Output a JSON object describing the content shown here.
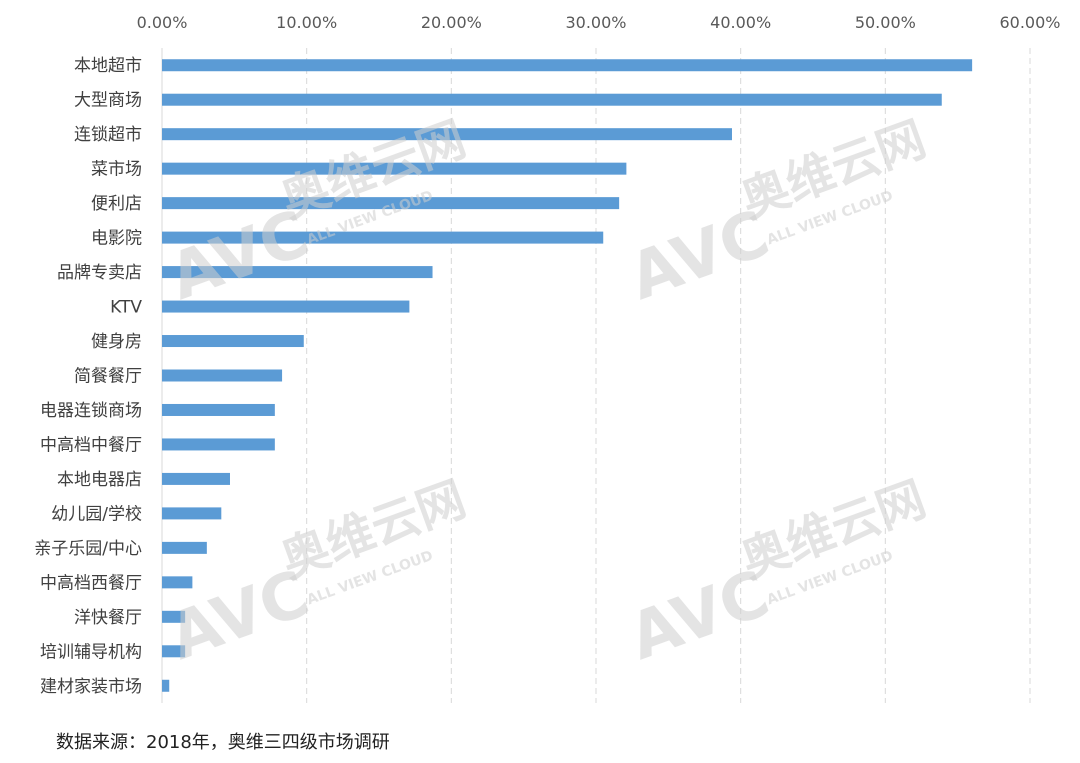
{
  "chart_data": {
    "type": "bar",
    "orientation": "horizontal",
    "categories": [
      "本地超市",
      "大型商场",
      "连锁超市",
      "菜市场",
      "便利店",
      "电影院",
      "品牌专卖店",
      "KTV",
      "健身房",
      "简餐餐厅",
      "电器连锁商场",
      "中高档中餐厅",
      "本地电器店",
      "幼儿园/学校",
      "亲子乐园/中心",
      "中高档西餐厅",
      "洋快餐厅",
      "培训辅导机构",
      "建材家装市场"
    ],
    "values": [
      56.0,
      53.9,
      39.4,
      32.1,
      31.6,
      30.5,
      18.7,
      17.1,
      9.8,
      8.3,
      7.8,
      7.8,
      4.7,
      4.1,
      3.1,
      2.1,
      1.6,
      1.6,
      0.5
    ],
    "value_axis_ticks": [
      "0.00%",
      "10.00%",
      "20.00%",
      "30.00%",
      "40.00%",
      "50.00%",
      "60.00%"
    ],
    "xlim": [
      0,
      60
    ],
    "value_axis_position": "top",
    "grid": true,
    "legend": "none",
    "bar_color": "#5b9bd5"
  },
  "watermark": {
    "logo": "AVC",
    "brand": "奥维云网",
    "tagline": "ALL VIEW CLOUD"
  },
  "footer": {
    "source": "数据来源：2018年，奥维三四级市场调研"
  }
}
